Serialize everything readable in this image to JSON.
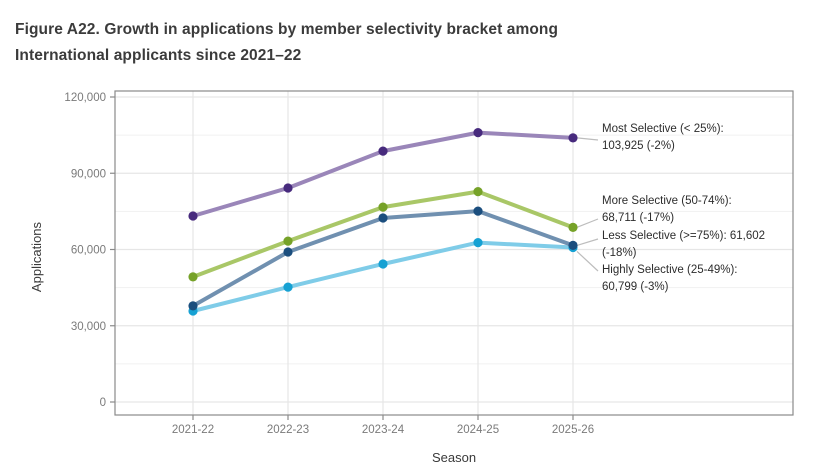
{
  "title": {
    "line1": "Figure A22. Growth in applications by member selectivity bracket among",
    "line2": "International applicants since 2021–22"
  },
  "chart_data": {
    "type": "line",
    "title": "Figure A22. Growth in applications by member selectivity bracket among International applicants since 2021–22",
    "xlabel": "Season",
    "ylabel": "Applications",
    "categories": [
      "2021-22",
      "2022-23",
      "2023-24",
      "2024-25",
      "2025-26"
    ],
    "ylim": [
      0,
      120000
    ],
    "y_major_ticks": [
      0,
      30000,
      60000,
      90000,
      120000
    ],
    "y_minor_ticks": [
      15000,
      45000,
      75000,
      105000
    ],
    "grid": "light gray horizontal major+minor, vertical major only",
    "legend_position": "right-side direct labels with leader lines",
    "series": [
      {
        "name": "Most Selective (< 25%)",
        "values": [
          73200,
          84200,
          98700,
          106000,
          103925
        ],
        "final_value": "103,925",
        "pct_change": "-2%",
        "line_color": "#9a86b9",
        "dot_color": "#472a7d",
        "annotation": {
          "line1": "Most Selective (< 25%):",
          "line2": "103,925 (-2%)"
        }
      },
      {
        "name": "More Selective (50-74%)",
        "values": [
          49200,
          63300,
          76700,
          82800,
          68711
        ],
        "final_value": "68,711",
        "pct_change": "-17%",
        "line_color": "#a9c767",
        "dot_color": "#76a228",
        "annotation": {
          "line1": "More Selective (50-74%):",
          "line2": "68,711 (-17%)"
        }
      },
      {
        "name": "Less Selective (>=75%)",
        "values": [
          37800,
          59000,
          72400,
          75100,
          61602
        ],
        "final_value": "61,602",
        "pct_change": "-18%",
        "line_color": "#7090b0",
        "dot_color": "#1b4e7e",
        "annotation": {
          "line1": "Less Selective (>=75%): 61,602",
          "line2": "(-18%)"
        }
      },
      {
        "name": "Highly Selective (25-49%)",
        "values": [
          35800,
          45200,
          54300,
          62700,
          60799
        ],
        "final_value": "60,799",
        "pct_change": "-3%",
        "line_color": "#7fcce8",
        "dot_color": "#16a1d3",
        "annotation": {
          "line1": "Highly Selective (25-49%):",
          "line2": "60,799 (-3%)"
        }
      }
    ],
    "colors": {
      "panel_border": "#8a8a8a",
      "grid_major": "#e6e6e6",
      "grid_minor": "#f1f1f1",
      "tick_label": "#7a7a7a",
      "axis_title": "#3a3a3a",
      "leader_line": "#bdbdbd"
    }
  }
}
